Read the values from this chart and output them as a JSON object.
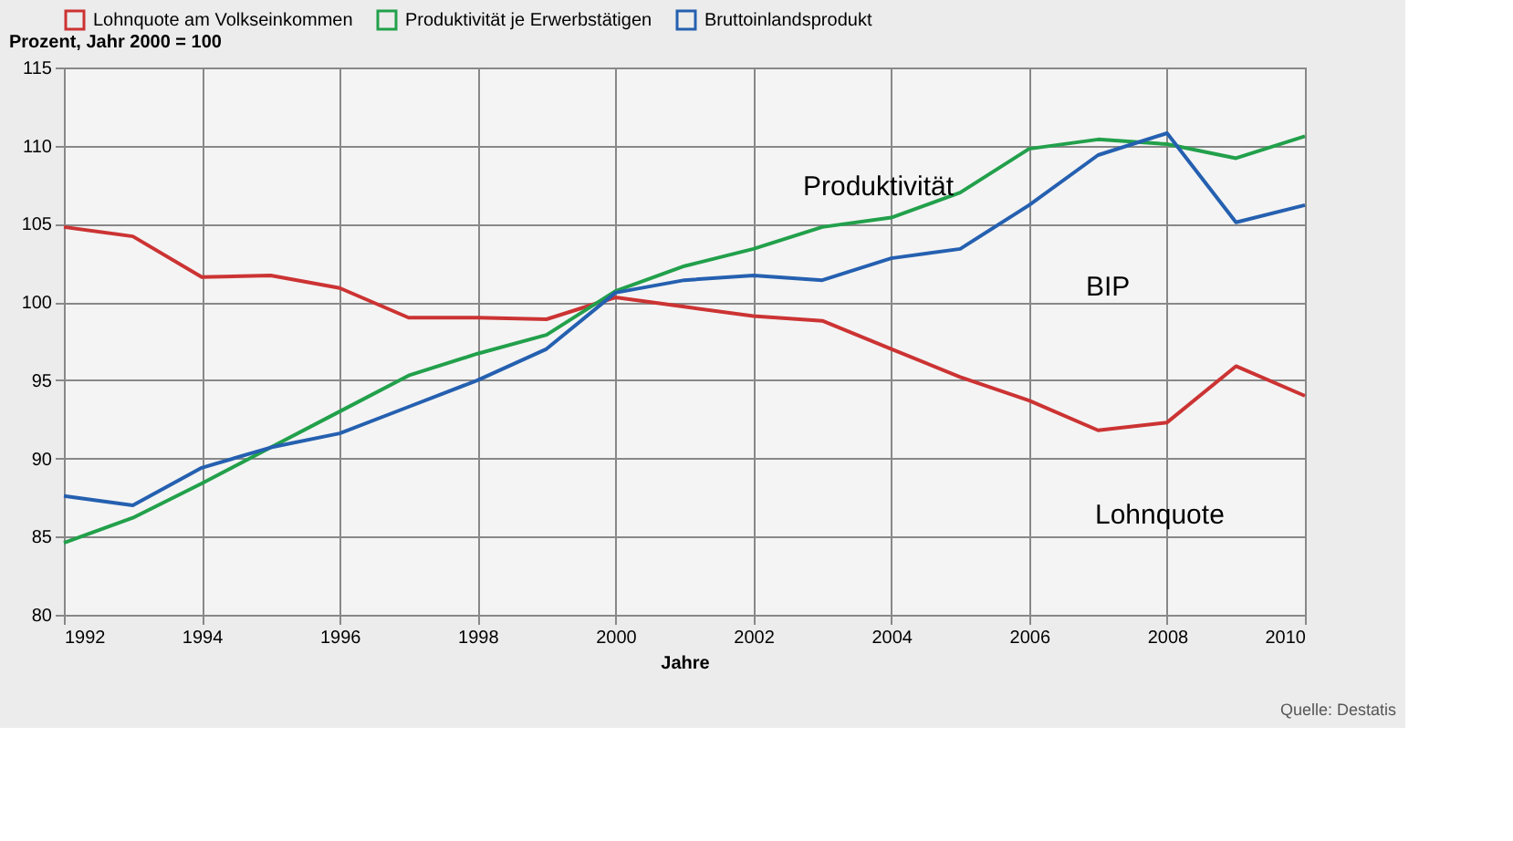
{
  "chart_data": {
    "type": "line",
    "ylabel": "Prozent, Jahr 2000 = 100",
    "xlabel": "Jahre",
    "x": [
      1992,
      1993,
      1994,
      1995,
      1996,
      1997,
      1998,
      1999,
      2000,
      2001,
      2002,
      2003,
      2004,
      2005,
      2006,
      2007,
      2008,
      2009,
      2010
    ],
    "series": [
      {
        "name": "Lohnquote am Volkseinkommen",
        "color": "#cc3333",
        "values": [
          104.8,
          104.2,
          101.6,
          101.7,
          100.9,
          99.0,
          99.0,
          98.9,
          100.3,
          99.7,
          99.1,
          98.8,
          97.0,
          95.2,
          93.7,
          91.8,
          92.3,
          95.9,
          94.0
        ]
      },
      {
        "name": "Produktivität je Erwerbstätigen",
        "color": "#22a04b",
        "values": [
          84.6,
          86.2,
          88.4,
          90.7,
          93.0,
          95.3,
          96.7,
          97.9,
          100.7,
          102.3,
          103.4,
          104.8,
          105.4,
          107.0,
          109.8,
          110.4,
          110.1,
          109.2,
          110.6
        ]
      },
      {
        "name": "Bruttoinlandsprodukt",
        "color": "#2560b0",
        "values": [
          87.6,
          87.0,
          89.4,
          90.7,
          91.6,
          93.3,
          95.0,
          97.0,
          100.6,
          101.4,
          101.7,
          101.4,
          102.8,
          103.4,
          106.2,
          109.4,
          110.8,
          105.1,
          106.2
        ]
      }
    ],
    "xlim": [
      1992,
      2010
    ],
    "xticks": [
      1992,
      1994,
      1996,
      1998,
      2000,
      2002,
      2004,
      2006,
      2008,
      2010
    ],
    "ylim": [
      80,
      115
    ],
    "yticks": [
      80,
      85,
      90,
      95,
      100,
      105,
      110,
      115
    ],
    "grid": true,
    "legend": "top",
    "marker": "none",
    "line_style": "solid",
    "annotations": [
      "Produktivität",
      "BIP",
      "Lohnquote",
      "Quelle: Destatis"
    ]
  }
}
